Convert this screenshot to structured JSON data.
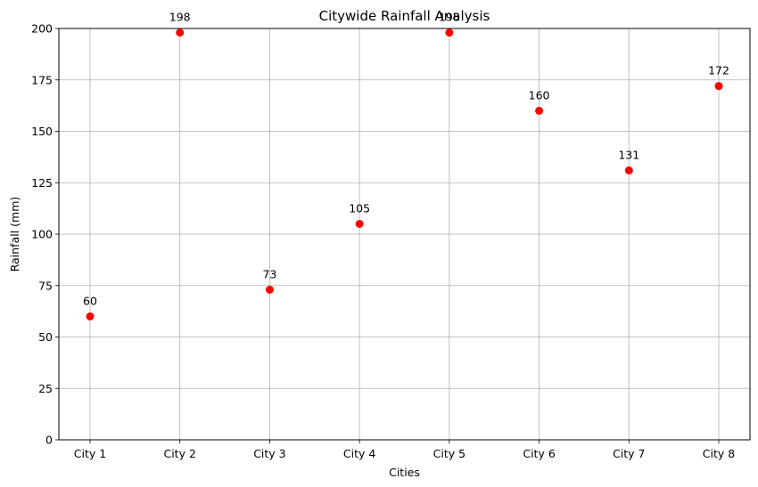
{
  "chart_data": {
    "type": "scatter",
    "title": "Citywide Rainfall Analysis",
    "xlabel": "Cities",
    "ylabel": "Rainfall (mm)",
    "categories": [
      "City 1",
      "City 2",
      "City 3",
      "City 4",
      "City 5",
      "City 6",
      "City 7",
      "City 8"
    ],
    "values": [
      60,
      198,
      73,
      105,
      198,
      160,
      131,
      172
    ],
    "ylim": [
      0,
      200
    ],
    "yticks": [
      0,
      25,
      50,
      75,
      100,
      125,
      150,
      175,
      200
    ],
    "grid": true,
    "marker_color": "#ff0000",
    "grid_color": "#b0b0b0"
  }
}
